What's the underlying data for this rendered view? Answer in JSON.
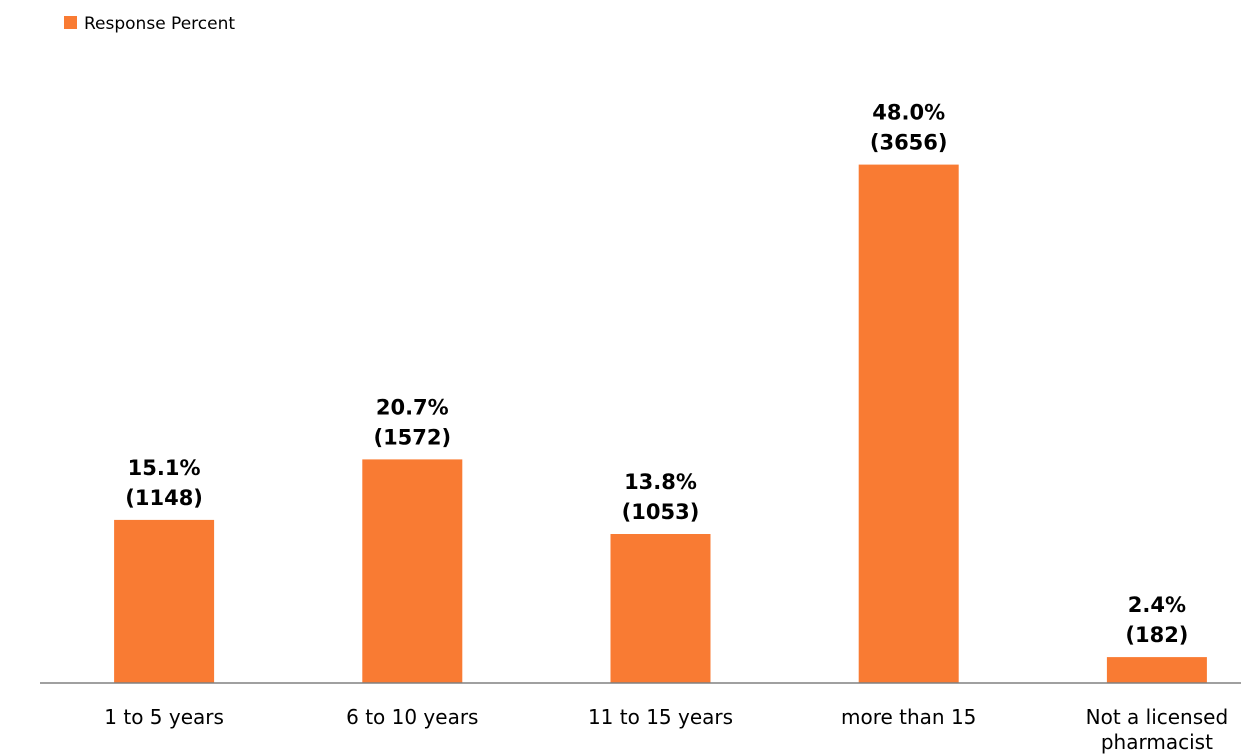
{
  "chart_data": {
    "type": "bar",
    "categories": [
      "1 to 5 years",
      "6 to 10 years",
      "11 to 15 years",
      "more than 15",
      "Not a licensed pharmacist"
    ],
    "category_lines": [
      [
        "1 to 5 years"
      ],
      [
        "6 to 10 years"
      ],
      [
        "11 to 15 years"
      ],
      [
        "more than 15"
      ],
      [
        "Not a licensed",
        "pharmacist"
      ]
    ],
    "series": [
      {
        "name": "Response Percent",
        "values": [
          15.1,
          20.7,
          13.8,
          48.0,
          2.4
        ],
        "counts": [
          1148,
          1572,
          1053,
          3656,
          182
        ],
        "labels_pct": [
          "15.1%",
          "20.7%",
          "13.8%",
          "48.0%",
          "2.4%"
        ],
        "labels_count": [
          "(1148)",
          "(1572)",
          "(1053)",
          "(3656)",
          "(182)"
        ]
      }
    ],
    "ylim": [
      0,
      60
    ],
    "grid": false,
    "legend_position": "top-left",
    "colors": {
      "bar": "#F97B33",
      "axis": "#808080"
    }
  }
}
